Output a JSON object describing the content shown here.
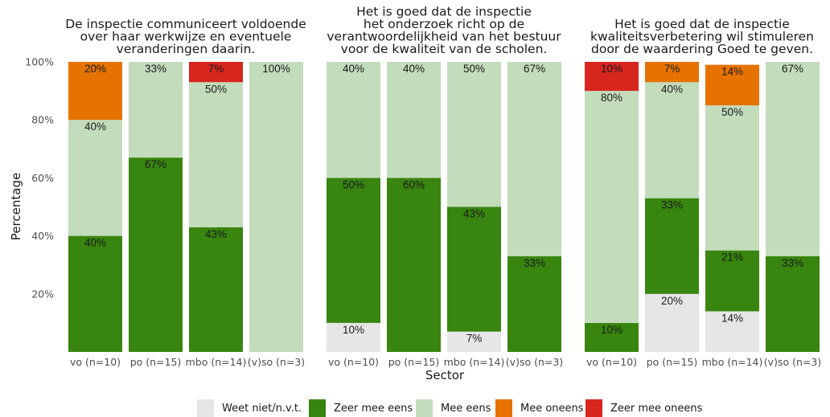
{
  "chart_data": {
    "type": "bar",
    "stacked": true,
    "ylabel": "Percentage",
    "xlabel": "Sector",
    "ylim": [
      0,
      100
    ],
    "yticks": [
      20,
      40,
      60,
      80,
      100
    ],
    "ytick_labels": [
      "20%",
      "40%",
      "60%",
      "80%",
      "100%"
    ],
    "categories": [
      "vo (n=10)",
      "po (n=15)",
      "mbo (n=14)",
      "(v)so (n=3)"
    ],
    "legend": {
      "position": "bottom",
      "entries": [
        {
          "name": "Weet niet/n.v.t.",
          "color": "#e6e6e6"
        },
        {
          "name": "Zeer mee eens",
          "color": "#38850f"
        },
        {
          "name": "Mee eens",
          "color": "#c3dcbb"
        },
        {
          "name": "Mee oneens",
          "color": "#e67300"
        },
        {
          "name": "Zeer mee oneens",
          "color": "#d7261e"
        }
      ]
    },
    "panels": [
      {
        "title": [
          "De inspectie communiceert voldoende",
          "over haar werkwijze en eventuele",
          "veranderingen daarin."
        ],
        "bars": [
          [
            {
              "s": "Zeer mee eens",
              "v": 40,
              "label": "40%"
            },
            {
              "s": "Mee eens",
              "v": 40,
              "label": "40%"
            },
            {
              "s": "Mee oneens",
              "v": 20,
              "label": "20%"
            }
          ],
          [
            {
              "s": "Zeer mee eens",
              "v": 67,
              "label": "67%"
            },
            {
              "s": "Mee eens",
              "v": 33,
              "label": "33%"
            }
          ],
          [
            {
              "s": "Zeer mee eens",
              "v": 43,
              "label": "43%"
            },
            {
              "s": "Mee eens",
              "v": 50,
              "label": "50%"
            },
            {
              "s": "Zeer mee oneens",
              "v": 7,
              "label": "7%"
            }
          ],
          [
            {
              "s": "Mee eens",
              "v": 100,
              "label": "100%"
            }
          ]
        ]
      },
      {
        "title": [
          "Het is goed dat de inspectie",
          "het onderzoek richt op de",
          "verantwoordelijkheid van het bestuur",
          "voor de kwaliteit van de scholen."
        ],
        "bars": [
          [
            {
              "s": "Weet niet/n.v.t.",
              "v": 10,
              "label": "10%"
            },
            {
              "s": "Zeer mee eens",
              "v": 50,
              "label": "50%"
            },
            {
              "s": "Mee eens",
              "v": 40,
              "label": "40%"
            }
          ],
          [
            {
              "s": "Zeer mee eens",
              "v": 60,
              "label": "60%"
            },
            {
              "s": "Mee eens",
              "v": 40,
              "label": "40%"
            }
          ],
          [
            {
              "s": "Weet niet/n.v.t.",
              "v": 7,
              "label": "7%"
            },
            {
              "s": "Zeer mee eens",
              "v": 43,
              "label": "43%"
            },
            {
              "s": "Mee eens",
              "v": 50,
              "label": "50%"
            }
          ],
          [
            {
              "s": "Zeer mee eens",
              "v": 33,
              "label": "33%"
            },
            {
              "s": "Mee eens",
              "v": 67,
              "label": "67%"
            }
          ]
        ]
      },
      {
        "title": [
          "Het is goed dat de inspectie",
          "kwaliteitsverbetering wil stimuleren",
          "door de waardering Goed te geven."
        ],
        "bars": [
          [
            {
              "s": "Zeer mee eens",
              "v": 10,
              "label": "10%"
            },
            {
              "s": "Mee eens",
              "v": 80,
              "label": "80%"
            },
            {
              "s": "Zeer mee oneens",
              "v": 10,
              "label": "10%"
            }
          ],
          [
            {
              "s": "Weet niet/n.v.t.",
              "v": 20,
              "label": "20%"
            },
            {
              "s": "Zeer mee eens",
              "v": 33,
              "label": "33%"
            },
            {
              "s": "Mee eens",
              "v": 40,
              "label": "40%"
            },
            {
              "s": "Mee oneens",
              "v": 7,
              "label": "7%"
            }
          ],
          [
            {
              "s": "Weet niet/n.v.t.",
              "v": 14,
              "label": "14%"
            },
            {
              "s": "Zeer mee eens",
              "v": 21,
              "label": "21%"
            },
            {
              "s": "Mee eens",
              "v": 50,
              "label": "50%"
            },
            {
              "s": "Mee oneens",
              "v": 14,
              "label": "14%"
            }
          ],
          [
            {
              "s": "Zeer mee eens",
              "v": 33,
              "label": "33%"
            },
            {
              "s": "Mee eens",
              "v": 67,
              "label": "67%"
            }
          ]
        ]
      }
    ]
  }
}
